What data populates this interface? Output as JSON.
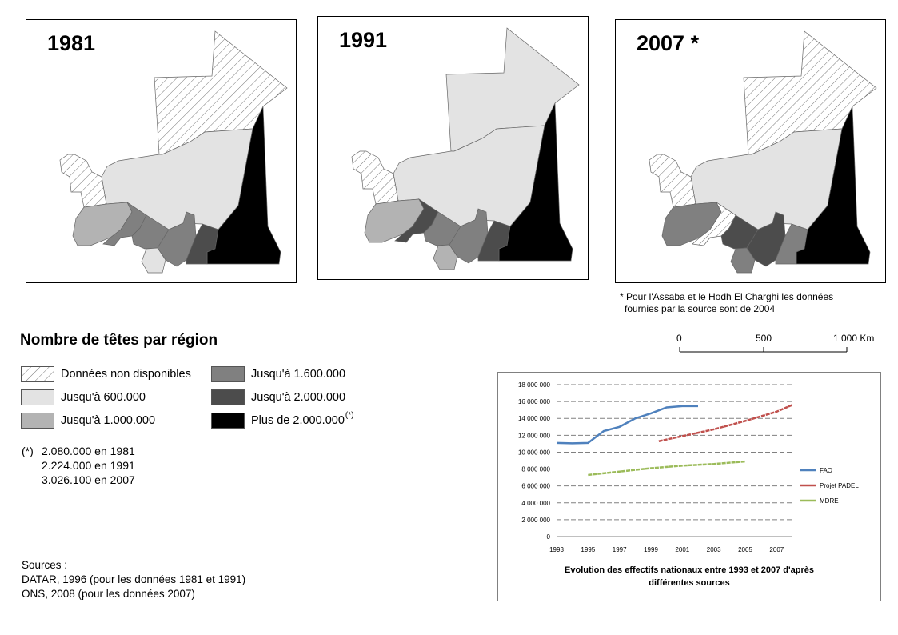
{
  "maps": [
    {
      "year_label": "1981"
    },
    {
      "year_label": "1991"
    },
    {
      "year_label": "2007 *"
    }
  ],
  "footnote": {
    "line1": "* Pour l'Assaba et le Hodh El Charghi les données",
    "line2": "fournies par la source sont de 2004"
  },
  "scale_bar": {
    "labels": [
      "0",
      "500",
      "1 000  Km"
    ]
  },
  "legend": {
    "title": "Nombre de têtes par région",
    "items": [
      {
        "label": "Données non disponibles",
        "fill": "hatch"
      },
      {
        "label": "Jusqu'à 600.000",
        "fill": "#e3e3e3"
      },
      {
        "label": "Jusqu'à 1.000.000",
        "fill": "#b3b3b3"
      },
      {
        "label": "Jusqu'à 1.600.000",
        "fill": "#808080"
      },
      {
        "label": "Jusqu'à 2.000.000",
        "fill": "#4c4c4c"
      },
      {
        "label": "Plus de 2.000.000",
        "fill": "#000000",
        "sup": "(*)"
      }
    ]
  },
  "note": {
    "marker": "(*)",
    "lines": [
      "2.080.000 en 1981",
      "2.224.000 en 1991",
      "3.026.100 en 2007"
    ]
  },
  "sources": {
    "title": "Sources :",
    "lines": [
      "DATAR, 1996 (pour les données 1981 et 1991)",
      "ONS, 2008 (pour les données 2007)"
    ]
  },
  "chart_data": {
    "type": "line",
    "title": "Evolution des effectifs nationaux entre 1993 et 2007 d'après différentes sources",
    "title_lines": [
      "Evolution des effectifs nationaux entre 1993 et 2007 d'après",
      "différentes sources"
    ],
    "xlim": [
      1993,
      2008
    ],
    "x_ticks": [
      1993,
      1995,
      1997,
      1999,
      2001,
      2003,
      2005,
      2007
    ],
    "ylim": [
      0,
      18000000
    ],
    "y_ticks": [
      0,
      2000000,
      4000000,
      6000000,
      8000000,
      10000000,
      12000000,
      14000000,
      16000000,
      18000000
    ],
    "y_tick_labels": [
      "0",
      "2 000 000",
      "4 000 000",
      "6 000 000",
      "8 000 000",
      "10 000 000",
      "12 000 000",
      "14 000 000",
      "16 000 000",
      "18 000 000"
    ],
    "grid": "horizontal dashed",
    "legend_position": "right",
    "series": [
      {
        "name": "FAO",
        "color": "#4f81bd",
        "x": [
          1993,
          1994,
          1995,
          1996,
          1997,
          1998,
          1999,
          2000,
          2001,
          2002
        ],
        "y": [
          11100000,
          11050000,
          11100000,
          12500000,
          13000000,
          14000000,
          14600000,
          15300000,
          15450000,
          15450000
        ]
      },
      {
        "name": "Projet PADEL",
        "color": "#c0504d",
        "x": [
          1999.5,
          2001,
          2003,
          2005,
          2007,
          2008
        ],
        "y": [
          11300000,
          11900000,
          12700000,
          13700000,
          14800000,
          15600000
        ]
      },
      {
        "name": "MDRE",
        "color": "#9bbb59",
        "x": [
          1995,
          1997,
          1999,
          2001,
          2003,
          2005
        ],
        "y": [
          7300000,
          7700000,
          8100000,
          8400000,
          8600000,
          8900000
        ]
      }
    ]
  }
}
